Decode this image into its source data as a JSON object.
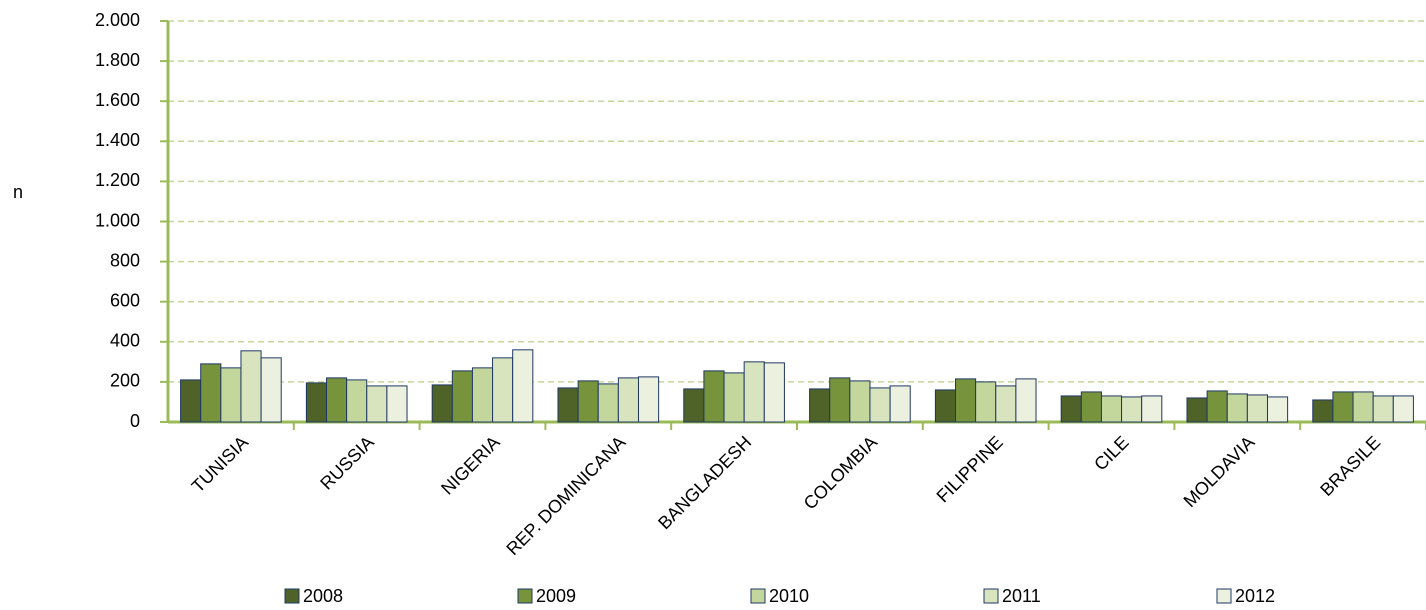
{
  "chart_data": {
    "type": "bar",
    "y_label": "n",
    "categories": [
      "TUNISIA",
      "RUSSIA",
      "NIGERIA",
      "REP. DOMINICANA",
      "BANGLADESH",
      "COLOMBIA",
      "FILIPPINE",
      "CILE",
      "MOLDAVIA",
      "BRASILE"
    ],
    "series": [
      {
        "name": "2008",
        "color": "#4f6228",
        "values": [
          210,
          195,
          185,
          170,
          165,
          165,
          160,
          130,
          120,
          110
        ]
      },
      {
        "name": "2009",
        "color": "#77933c",
        "values": [
          290,
          220,
          255,
          205,
          255,
          220,
          215,
          150,
          155,
          150
        ]
      },
      {
        "name": "2010",
        "color": "#c3d69b",
        "values": [
          270,
          210,
          270,
          190,
          245,
          205,
          200,
          130,
          140,
          150
        ]
      },
      {
        "name": "2011",
        "color": "#d7e4bd",
        "values": [
          355,
          180,
          320,
          220,
          300,
          170,
          180,
          125,
          135,
          130
        ]
      },
      {
        "name": "2012",
        "color": "#ebf1de",
        "values": [
          320,
          180,
          360,
          225,
          295,
          180,
          215,
          130,
          125,
          130
        ]
      }
    ],
    "ylim": [
      0,
      2000
    ],
    "yticks": [
      0,
      200,
      400,
      600,
      800,
      {
        "value": 1000,
        "label": "1.000"
      },
      {
        "value": 1200,
        "label": "1.200"
      },
      {
        "value": 1400,
        "label": "1.400"
      },
      {
        "value": 1600,
        "label": "1.600"
      },
      {
        "value": 1800,
        "label": "1.800"
      },
      {
        "value": 2000,
        "label": "2.000"
      }
    ],
    "grid": true,
    "legend": "bottom"
  }
}
